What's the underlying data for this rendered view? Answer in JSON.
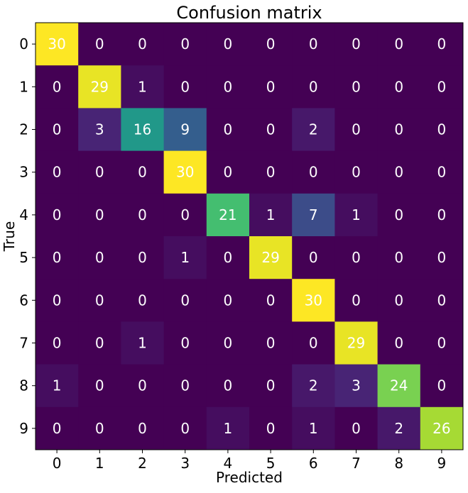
{
  "chart_data": {
    "type": "heatmap",
    "title": "Confusion matrix",
    "xlabel": "Predicted",
    "ylabel": "True",
    "x_categories": [
      "0",
      "1",
      "2",
      "3",
      "4",
      "5",
      "6",
      "7",
      "8",
      "9"
    ],
    "y_categories": [
      "0",
      "1",
      "2",
      "3",
      "4",
      "5",
      "6",
      "7",
      "8",
      "9"
    ],
    "values": [
      [
        30,
        0,
        0,
        0,
        0,
        0,
        0,
        0,
        0,
        0
      ],
      [
        0,
        29,
        1,
        0,
        0,
        0,
        0,
        0,
        0,
        0
      ],
      [
        0,
        3,
        16,
        9,
        0,
        0,
        2,
        0,
        0,
        0
      ],
      [
        0,
        0,
        0,
        30,
        0,
        0,
        0,
        0,
        0,
        0
      ],
      [
        0,
        0,
        0,
        0,
        21,
        1,
        7,
        1,
        0,
        0
      ],
      [
        0,
        0,
        0,
        1,
        0,
        29,
        0,
        0,
        0,
        0
      ],
      [
        0,
        0,
        0,
        0,
        0,
        0,
        30,
        0,
        0,
        0
      ],
      [
        0,
        0,
        1,
        0,
        0,
        0,
        0,
        29,
        0,
        0
      ],
      [
        1,
        0,
        0,
        0,
        0,
        0,
        2,
        3,
        24,
        0
      ],
      [
        0,
        0,
        0,
        0,
        1,
        0,
        1,
        0,
        2,
        26
      ]
    ],
    "value_range": [
      0,
      30
    ],
    "colormap": "viridis",
    "text_color_low": "#ffffff",
    "text_color_high": "#ffffff",
    "grid": false
  }
}
